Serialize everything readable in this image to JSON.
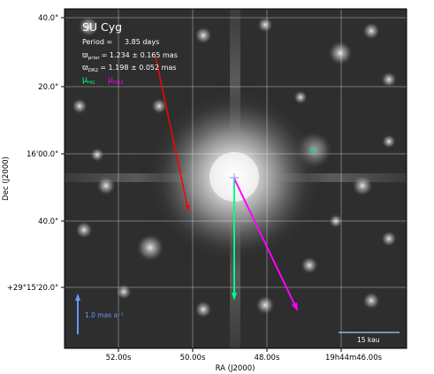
{
  "figure": {
    "star_name": "SU Cyg",
    "period_label": "Period =",
    "period_value": "3.85 days",
    "parallax_prior_prefix": "ϖ",
    "parallax_prior_sub": "prior",
    "parallax_prior_value": "= 1.234 ± 0.165 mas",
    "parallax_dr2_prefix": "ϖ",
    "parallax_dr2_sub": "DR2",
    "parallax_dr2_value": "= 1.198 ± 0.052 mas",
    "mu_hg_prefix": "μ",
    "mu_hg_sub": "HG",
    "mu_dr2_prefix": "μ",
    "mu_dr2_sub": "DR2",
    "scale_arrow_label": "1.0 mas a⁻¹",
    "scale_bar_label": "15 kau"
  },
  "axes": {
    "xlabel": "RA (J2000)",
    "ylabel": "Dec (J2000)",
    "x_ticks": [
      "52.00s",
      "50.00s",
      "48.00s",
      "19h44m46.00s"
    ],
    "y_ticks": [
      "40.0\"",
      "20.0\"",
      "16'00.0\"",
      "40.0\"",
      "+29°15'20.0\""
    ]
  },
  "colors": {
    "hg_arrow": "#00ff88",
    "dr2_arrow": "#ff00ff",
    "other_arrow": "#ff0000",
    "scale_arrow": "#6699ff",
    "text": "#ffffff"
  }
}
